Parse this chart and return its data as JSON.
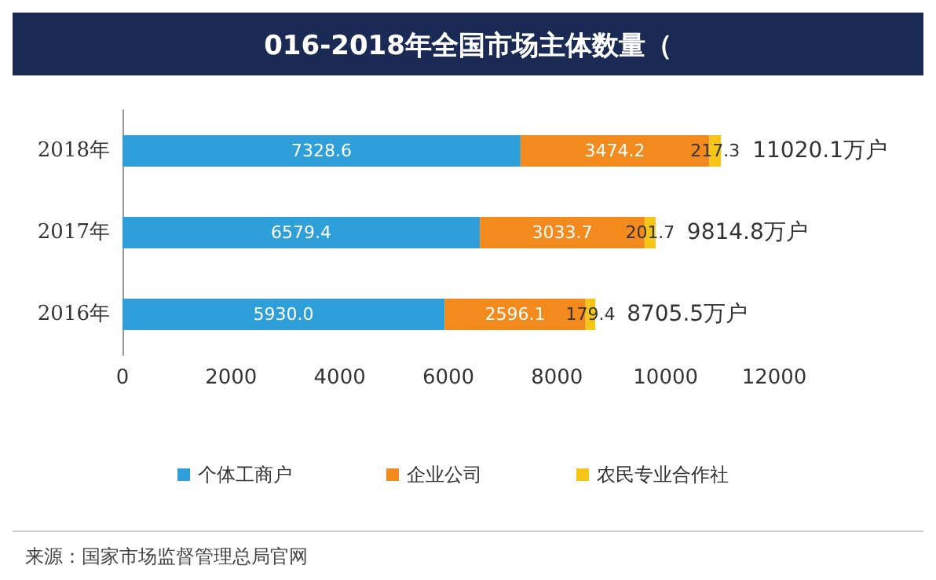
{
  "chart_data": {
    "type": "bar",
    "orientation": "horizontal",
    "stacked": true,
    "title": "016-2018年全国市场主体数量（",
    "categories": [
      "2018年",
      "2017年",
      "2016年"
    ],
    "series": [
      {
        "name": "个体工商户",
        "color": "#2e9fd8",
        "values": [
          7328.6,
          6579.4,
          5930.0
        ],
        "value_labels": [
          "7328.6",
          "6579.4",
          "5930.0"
        ]
      },
      {
        "name": "企业公司",
        "color": "#f28a1e",
        "values": [
          3474.2,
          3033.7,
          2596.1
        ],
        "value_labels": [
          "3474.2",
          "3033.7",
          "2596.1"
        ]
      },
      {
        "name": "农民专业合作社",
        "color": "#f5c518",
        "values": [
          217.3,
          201.7,
          179.4
        ],
        "value_labels": [
          "217.3",
          "201.7",
          "179.4"
        ]
      }
    ],
    "totals": [
      "11020.1万户",
      "9814.8万户",
      "8705.5万户"
    ],
    "xlim": [
      0,
      12000
    ],
    "xticks": [
      0,
      2000,
      4000,
      6000,
      8000,
      10000,
      12000
    ],
    "grid": false,
    "legend": "bottom",
    "annotations": [
      "来源：国家市场监督管理总局官网"
    ]
  }
}
